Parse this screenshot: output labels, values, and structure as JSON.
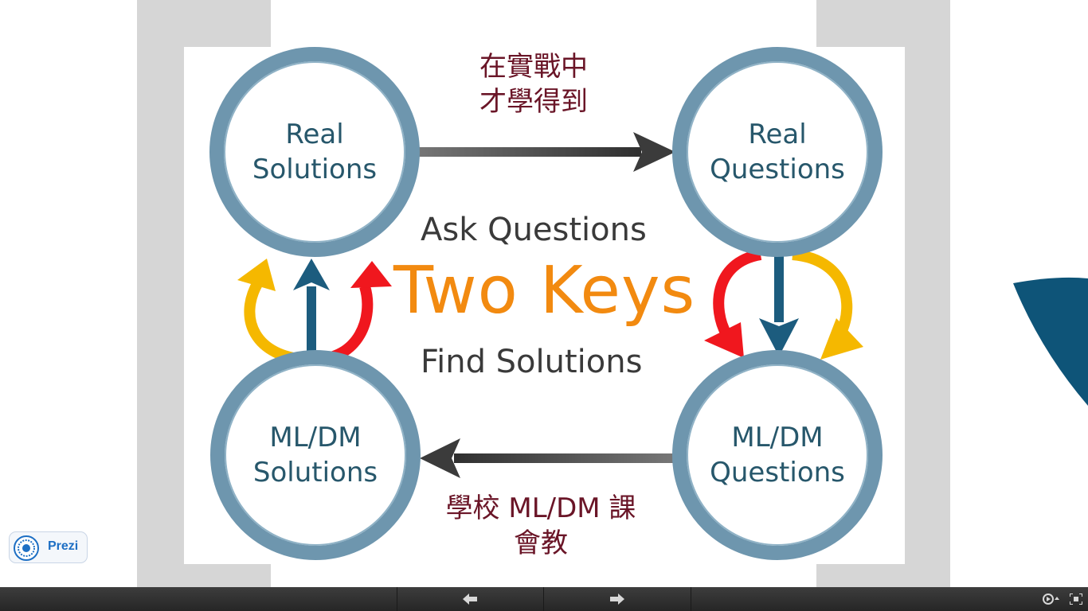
{
  "slide": {
    "nodes": {
      "top_left": [
        "Real",
        "Solutions"
      ],
      "top_right": [
        "Real",
        "Questions"
      ],
      "bottom_left": [
        "ML/DM",
        "Solutions"
      ],
      "bottom_right": [
        "ML/DM",
        "Questions"
      ]
    },
    "center": {
      "upper": "Ask Questions",
      "title": "Two Keys",
      "lower": "Find Solutions"
    },
    "captions": {
      "top": [
        "在實戰中",
        "才學得到"
      ],
      "bottom": [
        "學校 ML/DM 課",
        "會教"
      ]
    }
  },
  "colors": {
    "ring": "#6e96ae",
    "node_text": "#27576b",
    "title": "#f28a10",
    "caption": "#6a1527",
    "arrow_gray": "#3b3b3b",
    "arrow_blue": "#1c5c7e",
    "arrow_red": "#f0171e",
    "arrow_yellow": "#f5b800",
    "prezi_blue": "#1d6fc4"
  },
  "branding": {
    "logo_text": "Prezi"
  },
  "toolbar": {
    "prev_icon": "arrow-left-icon",
    "next_icon": "arrow-right-icon",
    "autoplay_icon": "autoplay-icon",
    "fullscreen_icon": "fullscreen-icon"
  }
}
